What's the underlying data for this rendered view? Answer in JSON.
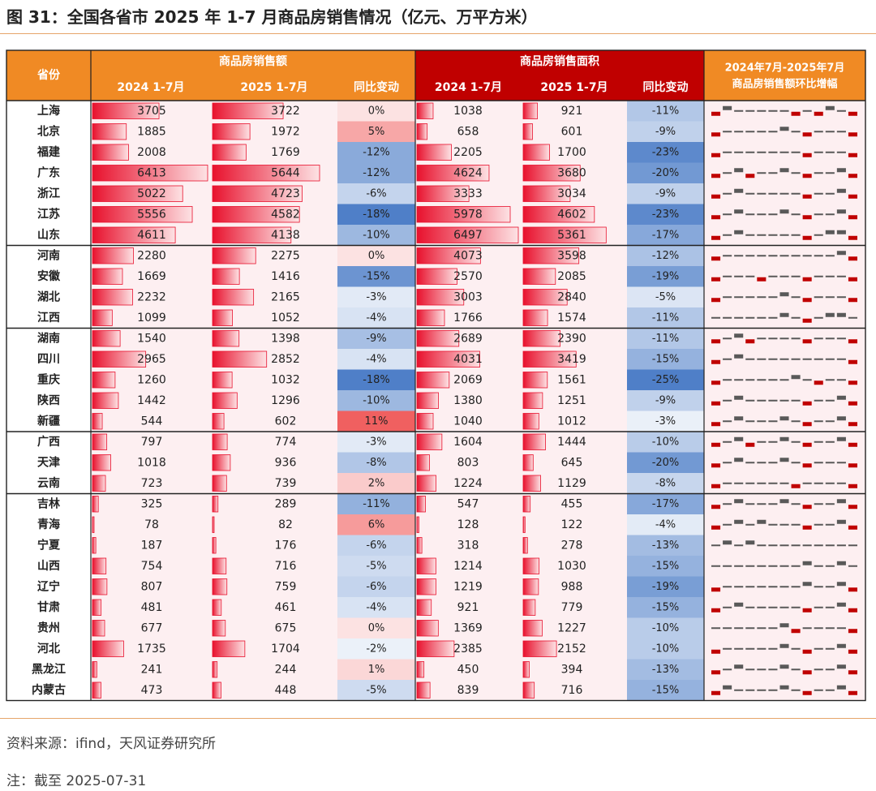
{
  "title": "图 31：全国各省市 2025 年 1-7 月商品房销售情况（亿元、万平方米）",
  "source": "资料来源：ifind，天风证券研究所",
  "note": "注：截至 2025-07-31",
  "colors": {
    "orange": "#f08a24",
    "darkred": "#c00000",
    "bar_red": "#e8112d",
    "row_bg": "#fdeff1",
    "pos_red": "#e8112d",
    "neg_blue": "#4f7fc8",
    "spark_gray": "#595959"
  },
  "chart_data": {
    "type": "table",
    "header": {
      "province": "省份",
      "sales_amount": "商品房销售额",
      "sales_area": "商品房销售面积",
      "y2024": "2024 1-7月",
      "y2025": "2025 1-7月",
      "yoy": "同比变动",
      "spark_line1": "2024年7月-2025年7月",
      "spark_line2": "商品房销售额环比增幅"
    },
    "rows": [
      {
        "province": "上海",
        "amt24": 3705,
        "amt25": 3722,
        "amt_yoy": "0%",
        "area24": 1038,
        "area25": 921,
        "area_yoy": "-11%",
        "spark": [
          -1,
          1,
          0,
          0,
          0,
          0,
          0,
          -0.3,
          0,
          -1,
          1,
          0,
          -1
        ]
      },
      {
        "province": "北京",
        "amt24": 1885,
        "amt25": 1972,
        "amt_yoy": "5%",
        "area24": 658,
        "area25": 601,
        "area_yoy": "-9%",
        "spark": [
          -1,
          0,
          0,
          0,
          0,
          0,
          1,
          0,
          -1,
          0,
          0,
          0,
          -1
        ]
      },
      {
        "province": "福建",
        "amt24": 2008,
        "amt25": 1769,
        "amt_yoy": "-12%",
        "area24": 2205,
        "area25": 1700,
        "area_yoy": "-23%",
        "spark": [
          -1,
          0,
          0,
          0,
          0,
          0,
          0,
          0,
          -1,
          0,
          0,
          0,
          -1
        ]
      },
      {
        "province": "广东",
        "amt24": 6413,
        "amt25": 5644,
        "amt_yoy": "-12%",
        "area24": 4624,
        "area25": 3680,
        "area_yoy": "-20%",
        "spark": [
          -1,
          0,
          1,
          -1,
          0,
          0,
          1,
          0,
          -1,
          0,
          0,
          1,
          -1
        ]
      },
      {
        "province": "浙江",
        "amt24": 5022,
        "amt25": 4723,
        "amt_yoy": "-6%",
        "area24": 3333,
        "area25": 3034,
        "area_yoy": "-9%",
        "spark": [
          -1,
          0,
          1,
          0,
          0,
          0,
          0,
          0,
          -1,
          0,
          0,
          1,
          -1
        ]
      },
      {
        "province": "江苏",
        "amt24": 5556,
        "amt25": 4582,
        "amt_yoy": "-18%",
        "area24": 5978,
        "area25": 4602,
        "area_yoy": "-23%",
        "spark": [
          -1,
          0,
          1,
          0,
          0,
          0,
          1,
          0,
          -1,
          0,
          0,
          1,
          -1
        ]
      },
      {
        "province": "山东",
        "amt24": 4611,
        "amt25": 4138,
        "amt_yoy": "-10%",
        "area24": 6497,
        "area25": 5361,
        "area_yoy": "-17%",
        "spark": [
          -1,
          0,
          1,
          0,
          0,
          0,
          0,
          0,
          -1,
          0,
          1,
          1,
          -1
        ]
      },
      {
        "province": "河南",
        "amt24": 2280,
        "amt25": 2275,
        "amt_yoy": "0%",
        "area24": 4073,
        "area25": 3598,
        "area_yoy": "-12%",
        "spark": [
          -1,
          0,
          0,
          0,
          0,
          0,
          0,
          0,
          0,
          0,
          0,
          1,
          -1
        ]
      },
      {
        "province": "安徽",
        "amt24": 1669,
        "amt25": 1416,
        "amt_yoy": "-15%",
        "area24": 2570,
        "area25": 2085,
        "area_yoy": "-19%",
        "spark": [
          -1,
          0,
          0,
          0,
          -1,
          0,
          0,
          0,
          -1,
          0,
          0,
          0,
          -1
        ]
      },
      {
        "province": "湖北",
        "amt24": 2232,
        "amt25": 2165,
        "amt_yoy": "-3%",
        "area24": 3003,
        "area25": 2840,
        "area_yoy": "-5%",
        "spark": [
          -1,
          0,
          0,
          0,
          0,
          0,
          1,
          0,
          -1,
          0,
          0,
          0,
          -1
        ]
      },
      {
        "province": "江西",
        "amt24": 1099,
        "amt25": 1052,
        "amt_yoy": "-4%",
        "area24": 1766,
        "area25": 1574,
        "area_yoy": "-11%",
        "spark": [
          0,
          0,
          0,
          0,
          0,
          0,
          1,
          0,
          -1,
          0,
          1,
          1,
          0
        ]
      },
      {
        "province": "湖南",
        "amt24": 1540,
        "amt25": 1398,
        "amt_yoy": "-9%",
        "area24": 2689,
        "area25": 2390,
        "area_yoy": "-11%",
        "spark": [
          -1,
          0,
          1,
          -1,
          0,
          0,
          0,
          0,
          -1,
          0,
          0,
          0,
          -1
        ]
      },
      {
        "province": "四川",
        "amt24": 2965,
        "amt25": 2852,
        "amt_yoy": "-4%",
        "area24": 4031,
        "area25": 3419,
        "area_yoy": "-15%",
        "spark": [
          -1,
          0,
          1,
          0,
          0,
          0,
          0,
          0,
          0,
          0,
          0,
          0,
          -1
        ]
      },
      {
        "province": "重庆",
        "amt24": 1260,
        "amt25": 1032,
        "amt_yoy": "-18%",
        "area24": 2069,
        "area25": 1561,
        "area_yoy": "-25%",
        "spark": [
          -1,
          0,
          0,
          0,
          0,
          0,
          0,
          1,
          0,
          -1,
          0,
          0,
          -1
        ]
      },
      {
        "province": "陕西",
        "amt24": 1442,
        "amt25": 1296,
        "amt_yoy": "-10%",
        "area24": 1380,
        "area25": 1251,
        "area_yoy": "-9%",
        "spark": [
          -1,
          0,
          1,
          0,
          0,
          0,
          0,
          0,
          -1,
          0,
          0,
          1,
          -1
        ]
      },
      {
        "province": "新疆",
        "amt24": 544,
        "amt25": 602,
        "amt_yoy": "11%",
        "area24": 1040,
        "area25": 1012,
        "area_yoy": "-3%",
        "spark": [
          -1,
          0,
          1,
          0,
          0,
          0,
          1,
          0,
          -1,
          0,
          0,
          1,
          -1
        ]
      },
      {
        "province": "广西",
        "amt24": 797,
        "amt25": 774,
        "amt_yoy": "-3%",
        "area24": 1604,
        "area25": 1444,
        "area_yoy": "-10%",
        "spark": [
          -1,
          0,
          1,
          -1,
          0,
          0,
          1,
          0,
          -1,
          0,
          0,
          1,
          -1
        ]
      },
      {
        "province": "天津",
        "amt24": 1018,
        "amt25": 936,
        "amt_yoy": "-8%",
        "area24": 803,
        "area25": 645,
        "area_yoy": "-20%",
        "spark": [
          -1,
          0,
          1,
          0,
          0,
          0,
          1,
          0,
          -1,
          0,
          0,
          0,
          -1
        ]
      },
      {
        "province": "云南",
        "amt24": 723,
        "amt25": 739,
        "amt_yoy": "2%",
        "area24": 1224,
        "area25": 1129,
        "area_yoy": "-8%",
        "spark": [
          -1,
          0,
          0,
          0,
          0,
          0,
          0,
          -1,
          0,
          0,
          0,
          0,
          -1
        ]
      },
      {
        "province": "吉林",
        "amt24": 325,
        "amt25": 289,
        "amt_yoy": "-11%",
        "area24": 547,
        "area25": 455,
        "area_yoy": "-17%",
        "spark": [
          -1,
          0,
          1,
          0,
          0,
          0,
          1,
          0,
          -1,
          0,
          0,
          1,
          -1
        ]
      },
      {
        "province": "青海",
        "amt24": 78,
        "amt25": 82,
        "amt_yoy": "6%",
        "area24": 128,
        "area25": 122,
        "area_yoy": "-4%",
        "spark": [
          -1,
          0,
          1,
          0,
          1,
          0,
          0,
          0,
          -1,
          0,
          0,
          1,
          -1
        ]
      },
      {
        "province": "宁夏",
        "amt24": 187,
        "amt25": 176,
        "amt_yoy": "-6%",
        "area24": 318,
        "area25": 278,
        "area_yoy": "-13%",
        "spark": [
          0,
          1,
          0,
          1,
          0,
          0,
          0,
          0,
          0,
          0,
          0,
          0,
          0
        ]
      },
      {
        "province": "山西",
        "amt24": 754,
        "amt25": 716,
        "amt_yoy": "-5%",
        "area24": 1214,
        "area25": 1030,
        "area_yoy": "-15%",
        "spark": [
          0,
          0,
          0,
          0,
          0,
          0,
          0,
          0,
          1,
          0,
          0,
          1,
          0
        ]
      },
      {
        "province": "辽宁",
        "amt24": 807,
        "amt25": 759,
        "amt_yoy": "-6%",
        "area24": 1219,
        "area25": 988,
        "area_yoy": "-19%",
        "spark": [
          -1,
          0,
          0,
          0,
          0,
          0,
          0,
          0,
          1,
          0,
          0,
          1,
          -1
        ]
      },
      {
        "province": "甘肃",
        "amt24": 481,
        "amt25": 461,
        "amt_yoy": "-4%",
        "area24": 921,
        "area25": 779,
        "area_yoy": "-15%",
        "spark": [
          -1,
          0,
          1,
          0,
          0,
          0,
          0,
          0,
          -1,
          0,
          0,
          1,
          -1
        ]
      },
      {
        "province": "贵州",
        "amt24": 677,
        "amt25": 675,
        "amt_yoy": "0%",
        "area24": 1369,
        "area25": 1227,
        "area_yoy": "-10%",
        "spark": [
          0,
          0,
          0,
          0,
          0,
          0,
          1,
          -1,
          0,
          0,
          0,
          0,
          -1
        ]
      },
      {
        "province": "河北",
        "amt24": 1735,
        "amt25": 1704,
        "amt_yoy": "-2%",
        "area24": 2385,
        "area25": 2152,
        "area_yoy": "-10%",
        "spark": [
          -1,
          0,
          0,
          0,
          0,
          0,
          1,
          0,
          -1,
          0,
          0,
          1,
          -1
        ]
      },
      {
        "province": "黑龙江",
        "amt24": 241,
        "amt25": 244,
        "amt_yoy": "1%",
        "area24": 450,
        "area25": 394,
        "area_yoy": "-13%",
        "spark": [
          -1,
          0,
          1,
          0,
          0,
          0,
          1,
          0,
          -1,
          0,
          0,
          1,
          -1
        ]
      },
      {
        "province": "内蒙古",
        "amt24": 473,
        "amt25": 448,
        "amt_yoy": "-5%",
        "area24": 839,
        "area25": 716,
        "area_yoy": "-15%",
        "spark": [
          -1,
          1,
          0,
          0,
          0,
          0,
          1,
          0,
          -1,
          0,
          0,
          1,
          -1
        ]
      }
    ],
    "group_breaks_after": [
      6,
      10,
      15,
      18
    ]
  }
}
